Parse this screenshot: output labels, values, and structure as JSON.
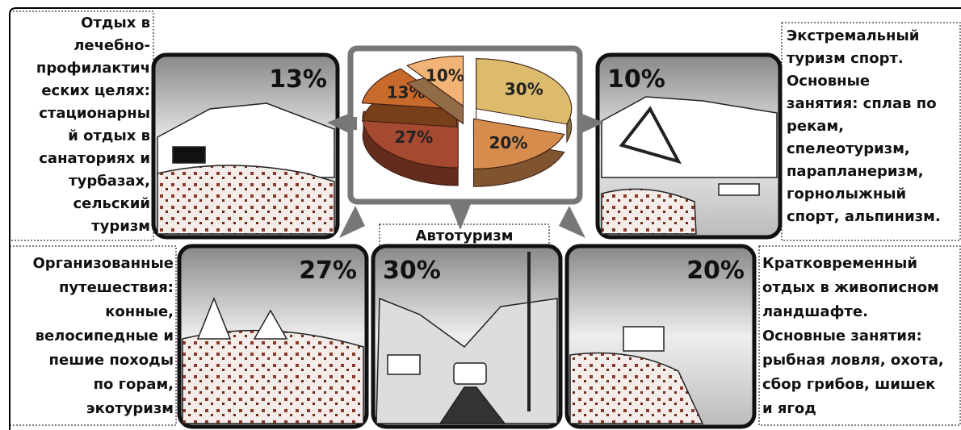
{
  "chart_data": {
    "type": "pie",
    "values": [
      30,
      20,
      27,
      13,
      10
    ],
    "value_labels": [
      "30%",
      "20%",
      "27%",
      "13%",
      "10%"
    ],
    "colors": [
      "#dcbc6c",
      "#d68c4c",
      "#a54a30",
      "#c86a2c",
      "#f2b476"
    ]
  },
  "descriptions": {
    "top_left": [
      "Отдых в",
      "лечебно-",
      "профилактич",
      "еских целях:",
      "стационарны",
      "й отдых в",
      "санаториях и",
      "турбазах,",
      "сельский",
      "туризм"
    ],
    "top_right": [
      "Экстремальный",
      "туризм спорт.",
      "Основные",
      "занятия: сплав по",
      "рекам,",
      "спелеотуризм,",
      "парапланеризм,",
      "горнолыжный",
      "спорт, альпинизм."
    ],
    "bottom_left": [
      "Организованные",
      "путешествия:",
      "конные,",
      "велосипедные и",
      "пешие походы",
      "по горам,",
      "экотуризм"
    ],
    "bottom_middle": "Автотуризм",
    "bottom_right": [
      "Кратковременный",
      "отдых в живописном",
      "ландшафте.",
      "Основные занятия:",
      "рыбная ловля, охота,",
      "сбор грибов, шишек",
      "и ягод"
    ]
  }
}
